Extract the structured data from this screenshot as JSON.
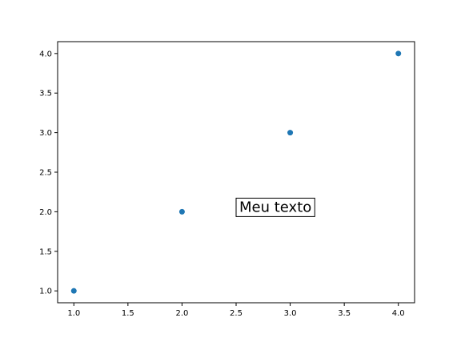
{
  "chart_data": {
    "type": "scatter",
    "title": "",
    "xlabel": "",
    "ylabel": "",
    "x": [
      1.0,
      2.0,
      3.0,
      4.0
    ],
    "y": [
      1.0,
      2.0,
      3.0,
      4.0
    ],
    "xlim": [
      0.85,
      4.15
    ],
    "ylim": [
      0.85,
      4.15
    ],
    "x_ticks": [
      "1.0",
      "1.5",
      "2.0",
      "2.5",
      "3.0",
      "3.5",
      "4.0"
    ],
    "y_ticks": [
      "1.0",
      "1.5",
      "2.0",
      "2.5",
      "3.0",
      "3.5",
      "4.0"
    ],
    "grid": false,
    "marker_color": "#1f77b4",
    "annotations": [
      {
        "text": "Meu texto",
        "x": 2.5,
        "y": 2.0,
        "boxed": true
      }
    ]
  }
}
